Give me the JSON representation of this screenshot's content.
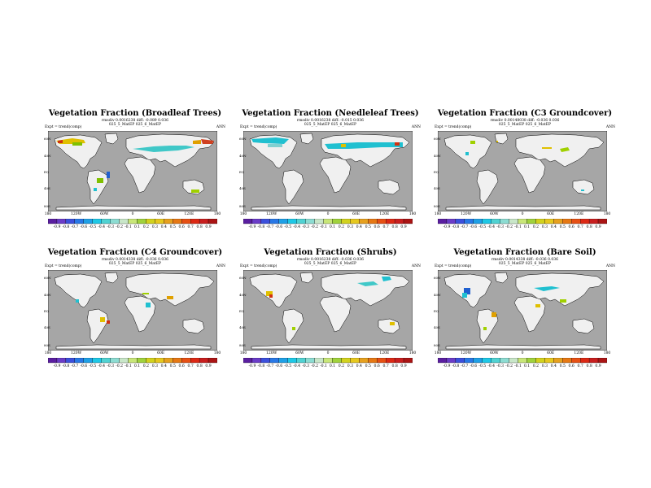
{
  "common": {
    "expt": "Expt = trend(comp)",
    "season": "ANN",
    "lon_ticks": [
      "180",
      "120W",
      "60W",
      "0",
      "60E",
      "120E",
      "180"
    ],
    "lat_ticks": [
      "60N",
      "40N",
      "EQ",
      "40S",
      "80S"
    ],
    "colorbar_labels": [
      "-0.9",
      "-0.8",
      "-0.7",
      "-0.6",
      "-0.5",
      "-0.4",
      "-0.3",
      "-0.2",
      "-0.1",
      "0.1",
      "0.2",
      "0.3",
      "0.4",
      "0.5",
      "0.6",
      "0.7",
      "0.8",
      "0.9"
    ],
    "colors": {
      "ocean": "#a6a6a6",
      "land": "#f0f0f0",
      "coast": "#000000"
    }
  },
  "panels": [
    {
      "title": "Vegetation Fraction (Broadleaf Trees)",
      "meta1": "rmsdiv 0.0016238 diff: -0.089 0.036",
      "meta2": "025_5_MatEP   025_6_MatEP"
    },
    {
      "title": "Vegetation Fraction (Needleleaf Trees)",
      "meta1": "rmsdiv 0.0016238 diff: -0.015 0.036",
      "meta2": "025_5_MatEP   025_6_MatEP"
    },
    {
      "title": "Vegetation Fraction (C3 Groundcover)",
      "meta1": "rmsdiv 0.00148038 diff: -0.036 0.036",
      "meta2": "025_5_MatEP   025_6_MatEP"
    },
    {
      "title": "Vegetation Fraction (C4 Groundcover)",
      "meta1": "rmsdiv 0.0014338 diff: -0.036 0.036",
      "meta2": "025_5_MatEP   025_6_MatEP"
    },
    {
      "title": "Vegetation Fraction (Shrubs)",
      "meta1": "rmsdiv 0.0016238 diff: -0.036 0.036",
      "meta2": "025_5_MatEP   025_6_MatEP"
    },
    {
      "title": "Vegetation Fraction (Bare Soil)",
      "meta1": "rmsdiv 0.0014338 diff: -0.036 0.036",
      "meta2": "025_5_MatEP   025_6_MatEP"
    }
  ]
}
